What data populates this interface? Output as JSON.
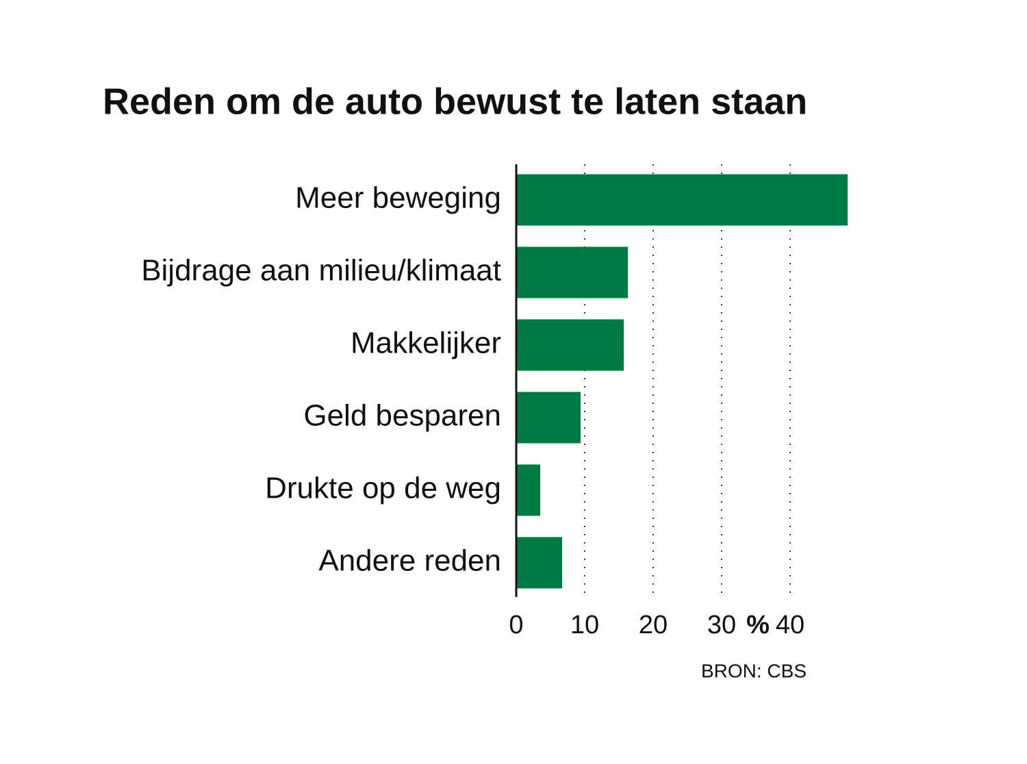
{
  "chart_data": {
    "type": "bar",
    "orientation": "horizontal",
    "title": "Reden om de auto bewust te laten staan",
    "categories": [
      "Meer beweging",
      "Bijdrage aan milieu/klimaat",
      "Makkelijker",
      "Geld besparen",
      "Drukte op de weg",
      "Andere reden"
    ],
    "values": [
      48.4,
      16.3,
      15.7,
      9.4,
      3.5,
      6.7
    ],
    "color": "#007a45",
    "xlim": [
      0,
      50
    ],
    "xticks": [
      0,
      10,
      20,
      30,
      40
    ],
    "x_unit": "%",
    "grid": true,
    "source": "BRON: CBS"
  }
}
